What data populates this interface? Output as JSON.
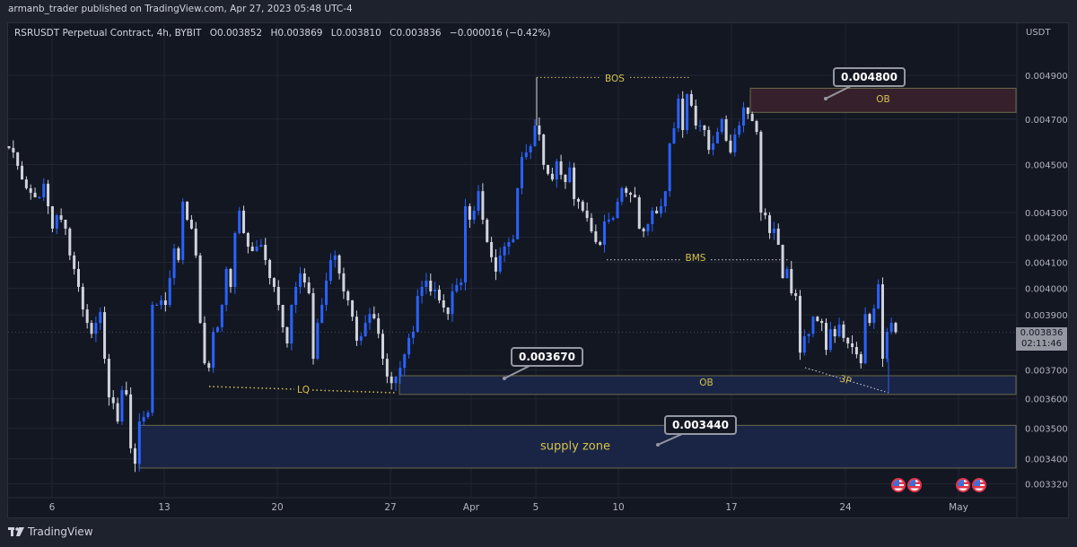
{
  "publisher_line": "armanb_trader published on TradingView.com, Apr 27, 2023 05:48 UTC-4",
  "legend": {
    "symbol": "RSRUSDT Perpetual Contract, 4h, BYBIT",
    "o_label": "O",
    "o": "0.003852",
    "h_label": "H",
    "h": "0.003869",
    "l_label": "L",
    "l": "0.003810",
    "c_label": "C",
    "c": "0.003836",
    "change": "−0.000016 (−0.42%)"
  },
  "price_axis": {
    "currency": "USDT",
    "current_price": "0.003836",
    "countdown": "02:11:46"
  },
  "annotations": {
    "bos": "BOS",
    "bms": "BMS",
    "lq": "LQ",
    "three_p": "3P",
    "ob_upper": "OB",
    "ob_lower": "OB",
    "supply_zone": "supply zone",
    "callout_upper": "0.004800",
    "callout_mid": "0.003670",
    "callout_lower": "0.003440"
  },
  "events": [
    {
      "icon": "us-flag-icon"
    },
    {
      "icon": "us-flag-icon"
    },
    {
      "icon": "us-flag-icon"
    },
    {
      "icon": "us-flag-icon"
    }
  ],
  "footer": {
    "logo_text": "TradingView"
  },
  "colors": {
    "background": "#131722",
    "up_candle": "#2962ff",
    "down_candle": "#d1d4dc",
    "annotation": "#d4c24d",
    "ob_upper_fill": "#35202c",
    "demand_fill": "#1a2545",
    "price_tag": "#9598a1"
  },
  "chart_data": {
    "type": "candlestick",
    "title": "RSRUSDT Perpetual Contract, 4h, BYBIT",
    "y_scale": "log",
    "ylim": [
      0.0033,
      0.005
    ],
    "y_ticks": [
      "0.004900",
      "0.004700",
      "0.004500",
      "0.004300",
      "0.004200",
      "0.004100",
      "0.004000",
      "0.003900",
      "0.003700",
      "0.003600",
      "0.003500",
      "0.003400",
      "0.003320"
    ],
    "x_ticks": [
      "6",
      "13",
      "20",
      "27",
      "Apr",
      "5",
      "10",
      "17",
      "24",
      "May"
    ],
    "grid": true,
    "up_color": "blue",
    "down_color": "white",
    "first_open": 0.00458,
    "closes": [
      0.004572,
      0.004553,
      0.004495,
      0.004437,
      0.0044,
      0.004381,
      0.004362,
      0.004362,
      0.004419,
      0.004325,
      0.004234,
      0.004288,
      0.00427,
      0.004234,
      0.004127,
      0.004074,
      0.004005,
      0.00392,
      0.00387,
      0.00383,
      0.00387,
      0.00391,
      0.00374,
      0.003605,
      0.003585,
      0.003523,
      0.00363,
      0.003615,
      0.003434,
      0.003384,
      0.003523,
      0.003538,
      0.003553,
      0.003937,
      0.003937,
      0.003954,
      0.003937,
      0.004039,
      0.004155,
      0.004109,
      0.004344,
      0.00427,
      0.004234,
      0.004127,
      0.00387,
      0.003724,
      0.003708,
      0.003837,
      0.003854,
      0.003937,
      0.004074,
      0.004005,
      0.004216,
      0.004307,
      0.004216,
      0.004162,
      0.004144,
      0.004162,
      0.004169,
      0.004109,
      0.004039,
      0.004005,
      0.003937,
      0.003854,
      0.003795,
      0.003937,
      0.004005,
      0.004057,
      0.004022,
      0.003981,
      0.00374,
      0.00387,
      0.003937,
      0.004029,
      0.004109,
      0.004127,
      0.004057,
      0.003988,
      0.003954,
      0.003893,
      0.003805,
      0.003821,
      0.00387,
      0.003903,
      0.003887,
      0.00383,
      0.00374,
      0.003677,
      0.003654,
      0.003677,
      0.003708,
      0.003756,
      0.003815,
      0.003837,
      0.003971,
      0.004005,
      0.004029,
      0.003988,
      0.003995,
      0.003954,
      0.003927,
      0.003903,
      0.003988,
      0.004012,
      0.004022,
      0.004325,
      0.00427,
      0.004307,
      0.004388,
      0.00427,
      0.00418,
      0.00412,
      0.004064,
      0.004127,
      0.004162,
      0.00418,
      0.004191,
      0.0044,
      0.004533,
      0.004553,
      0.00458,
      0.004671,
      0.004631,
      0.004499,
      0.004461,
      0.004437,
      0.004514,
      0.004457,
      0.004426,
      0.004488,
      0.004355,
      0.004344,
      0.004307,
      0.004277,
      0.004223,
      0.00418,
      0.004169,
      0.004263,
      0.00427,
      0.004277,
      0.004344,
      0.0044,
      0.004381,
      0.004373,
      0.004362,
      0.004234,
      0.004223,
      0.004252,
      0.004307,
      0.004296,
      0.004325,
      0.004388,
      0.004592,
      0.004659,
      0.004792,
      0.004651,
      0.004813,
      0.00476,
      0.004671,
      0.004671,
      0.004651,
      0.004564,
      0.004592,
      0.004643,
      0.004699,
      0.004604,
      0.004553,
      0.004631,
      0.004671,
      0.004752,
      0.004723,
      0.004691,
      0.004643,
      0.004299,
      0.004288,
      0.004216,
      0.004234,
      0.004169,
      0.004039,
      0.004074,
      0.003981,
      0.003971,
      0.003762,
      0.003821,
      0.00383,
      0.003893,
      0.003877,
      0.00387,
      0.003772,
      0.003847,
      0.003821,
      0.003864,
      0.003815,
      0.003795,
      0.003782,
      0.003756,
      0.003724,
      0.003903,
      0.00387,
      0.003924,
      0.004015,
      0.00374,
      0.003837,
      0.00387,
      0.003836
    ],
    "zones": [
      {
        "label": "OB",
        "top": 0.00484,
        "bottom": 0.00473
      },
      {
        "label": "OB",
        "top": 0.00368,
        "bottom": 0.003615
      },
      {
        "label": "supply zone",
        "top": 0.00351,
        "bottom": 0.00337
      }
    ],
    "levels": [
      {
        "label": "BOS",
        "price": 0.00489
      },
      {
        "label": "BMS",
        "price": 0.00411
      },
      {
        "label": "LQ",
        "price": 0.00362
      },
      {
        "label": "3P",
        "price": 0.00361
      }
    ]
  }
}
